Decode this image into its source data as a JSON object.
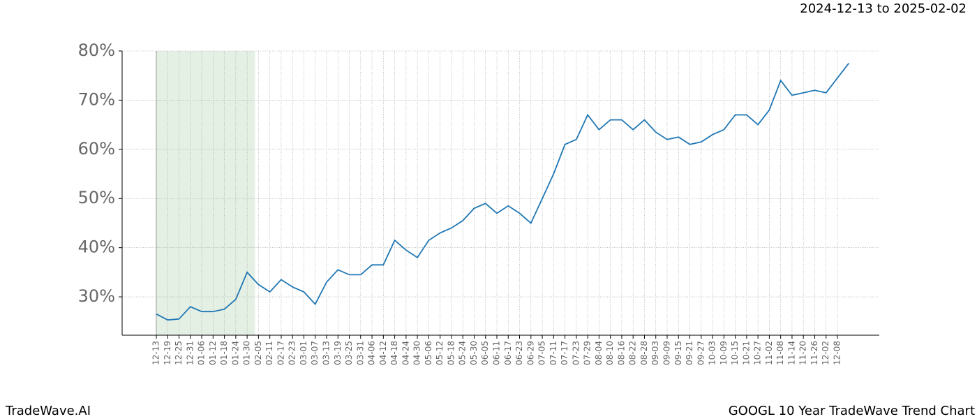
{
  "chart_data": {
    "type": "line",
    "subtitle": "2024-12-13 to 2025-02-02",
    "footer_left": "TradeWave.AI",
    "footer_right": "GOOGL 10 Year TradeWave Trend Chart",
    "categories": [
      "12-13",
      "12-19",
      "12-25",
      "12-31",
      "01-06",
      "01-12",
      "01-18",
      "01-24",
      "01-30",
      "02-05",
      "02-11",
      "02-17",
      "02-23",
      "03-01",
      "03-07",
      "03-13",
      "03-19",
      "03-25",
      "03-31",
      "04-06",
      "04-12",
      "04-18",
      "04-24",
      "04-30",
      "05-06",
      "05-12",
      "05-18",
      "05-24",
      "05-30",
      "06-05",
      "06-11",
      "06-17",
      "06-23",
      "06-29",
      "07-05",
      "07-11",
      "07-17",
      "07-23",
      "07-29",
      "08-04",
      "08-10",
      "08-16",
      "08-22",
      "08-28",
      "09-03",
      "09-09",
      "09-15",
      "09-21",
      "09-27",
      "10-03",
      "10-09",
      "10-15",
      "10-21",
      "10-27",
      "11-02",
      "11-08",
      "11-14",
      "11-20",
      "11-26",
      "12-02",
      "12-08",
      null
    ],
    "series": [
      {
        "color": "#1f77b4",
        "values": [
          26.5,
          25.3,
          25.5,
          28,
          27,
          27,
          27.5,
          29.5,
          35,
          32.5,
          31,
          33.5,
          32,
          31,
          28.5,
          33,
          35.5,
          34.5,
          34.5,
          36.5,
          36.5,
          41.5,
          39.5,
          38,
          41.5,
          43,
          44,
          45.5,
          48,
          49,
          47,
          48.5,
          47,
          45,
          50,
          55,
          61,
          62,
          67,
          64,
          66,
          66,
          64,
          66,
          63.5,
          62,
          62.5,
          61,
          61.5,
          63,
          64,
          67,
          67,
          65,
          68,
          74,
          71,
          71.5,
          72,
          71.5,
          74.5,
          77.5
        ]
      }
    ],
    "shade": {
      "from": "12-13",
      "to": "02-05",
      "color": "#e5f0e5"
    },
    "ylim": [
      22.2,
      80
    ],
    "yticks": [
      {
        "value": 30,
        "label": "30%"
      },
      {
        "value": 40,
        "label": "40%"
      },
      {
        "value": 50,
        "label": "50%"
      },
      {
        "value": 60,
        "label": "60%"
      },
      {
        "value": 70,
        "label": "70%"
      },
      {
        "value": 80,
        "label": "80%"
      }
    ],
    "grid": true
  }
}
